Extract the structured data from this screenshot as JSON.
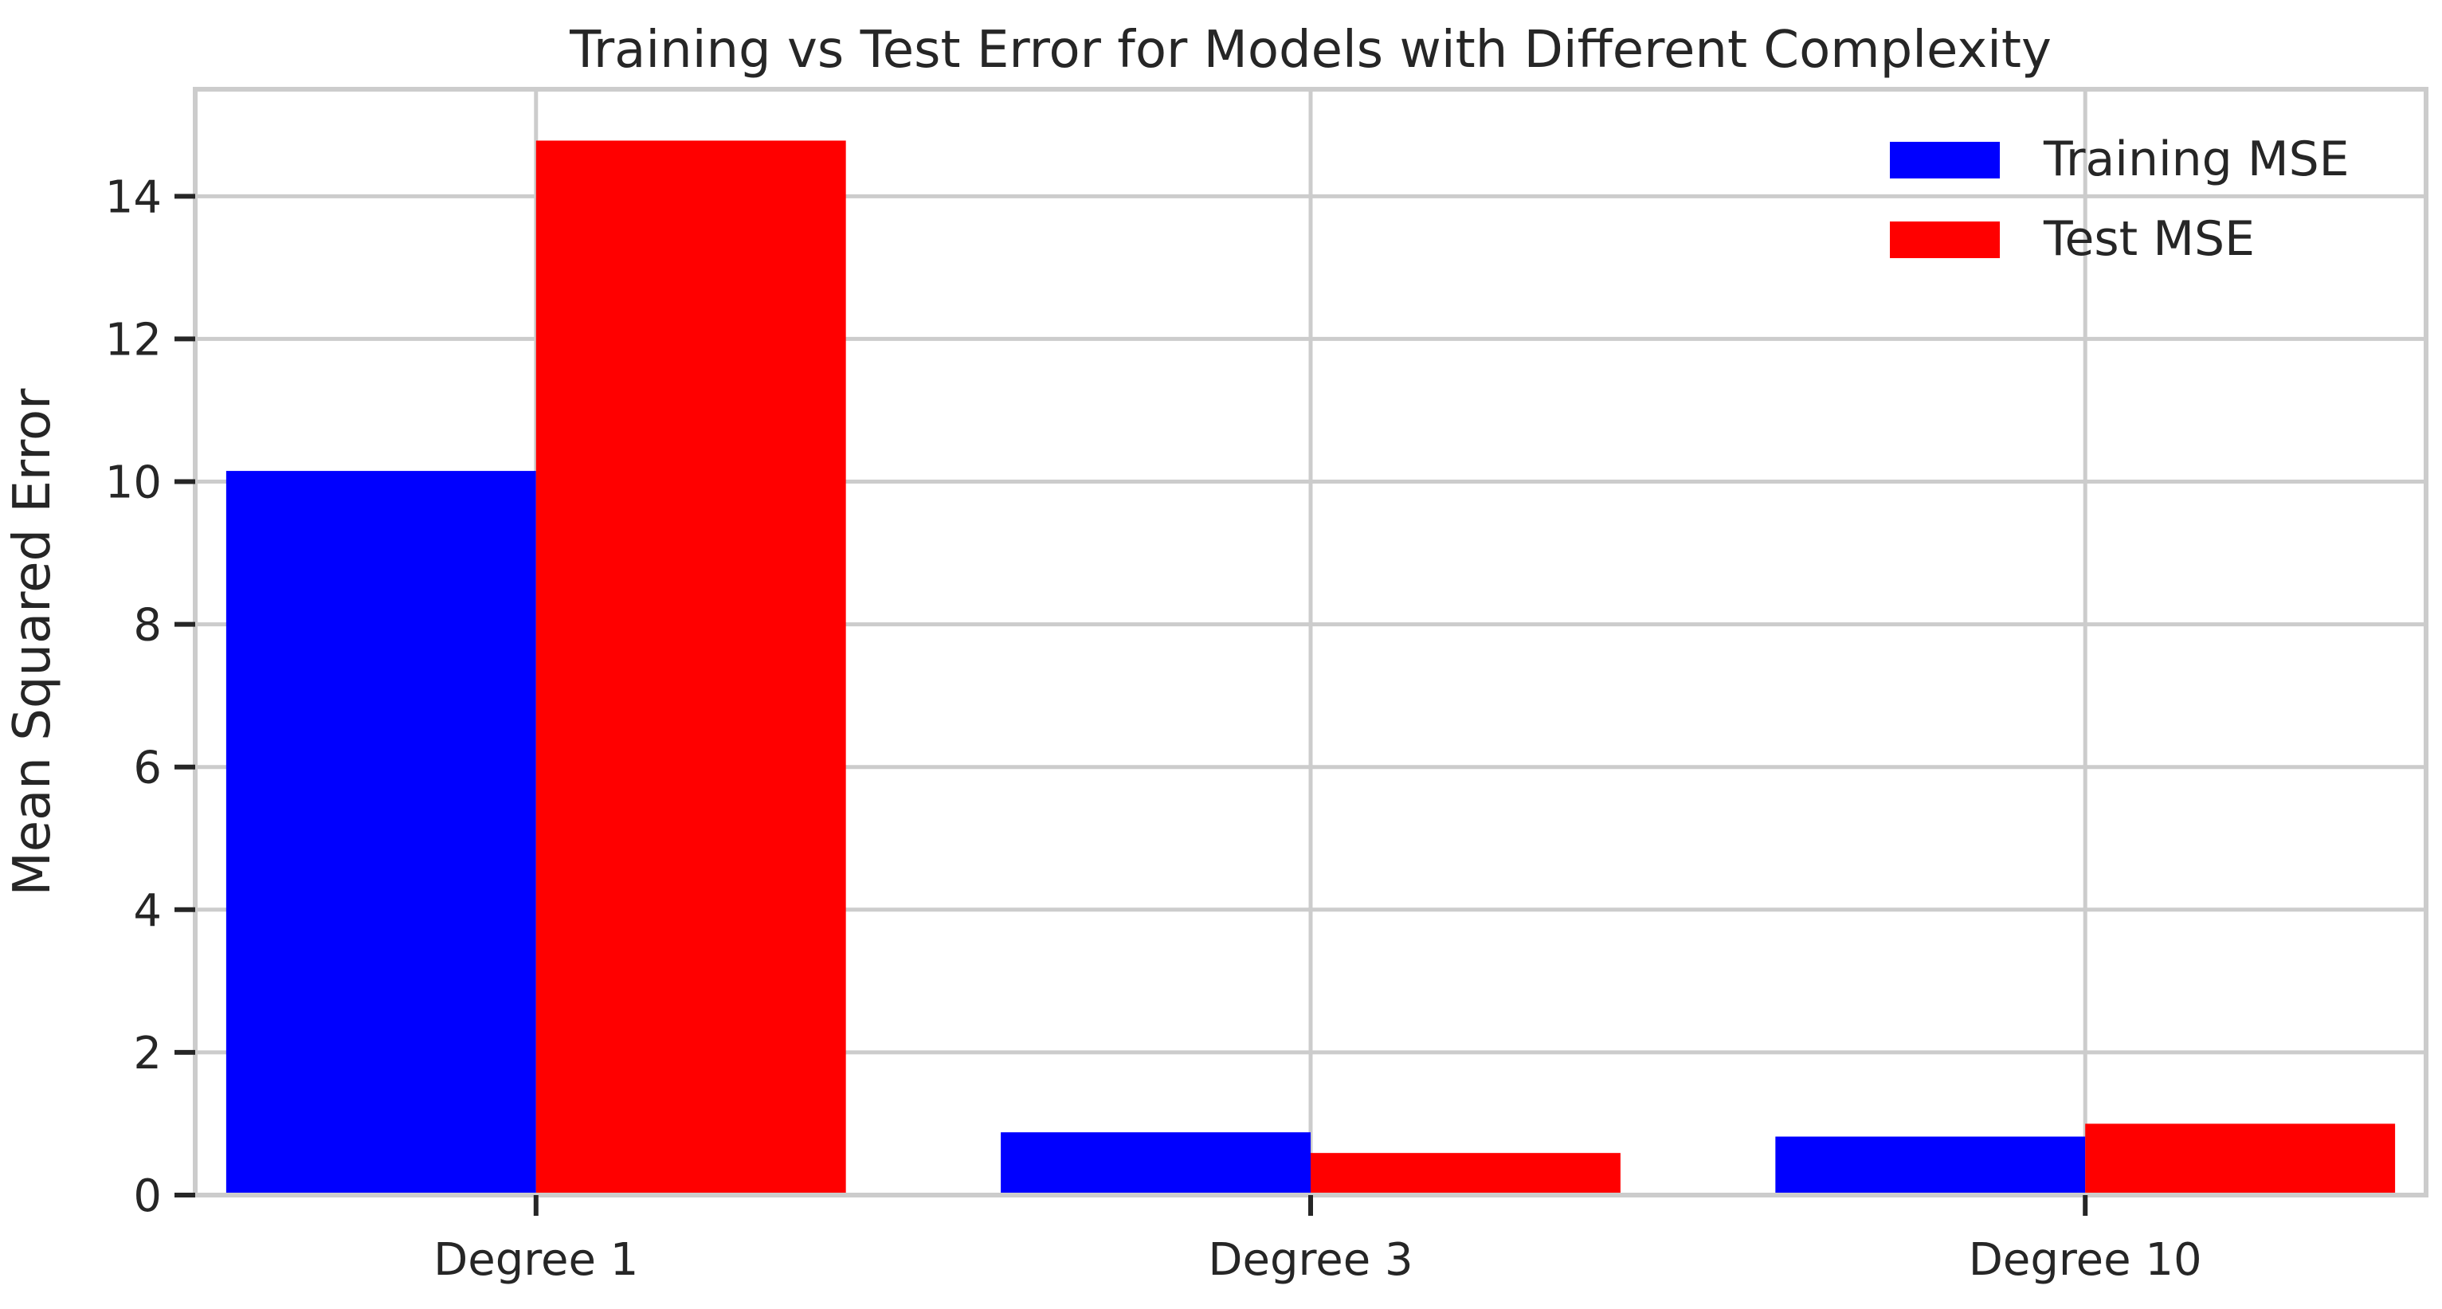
{
  "chart_data": {
    "type": "bar",
    "title": "Training vs Test Error for Models with Different Complexity",
    "xlabel": "",
    "ylabel": "Mean Squared Error",
    "categories": [
      "Degree 1",
      "Degree 3",
      "Degree 10"
    ],
    "series": [
      {
        "name": "Training MSE",
        "color": "#0000ff",
        "values": [
          10.15,
          0.88,
          0.82
        ]
      },
      {
        "name": "Test MSE",
        "color": "#ff0000",
        "values": [
          14.78,
          0.59,
          1.0
        ]
      }
    ],
    "ylim": [
      0,
      15.5
    ],
    "yticks": [
      "0",
      "2",
      "4",
      "6",
      "8",
      "10",
      "12",
      "14"
    ],
    "grid": true,
    "legend_position": "top-right"
  }
}
